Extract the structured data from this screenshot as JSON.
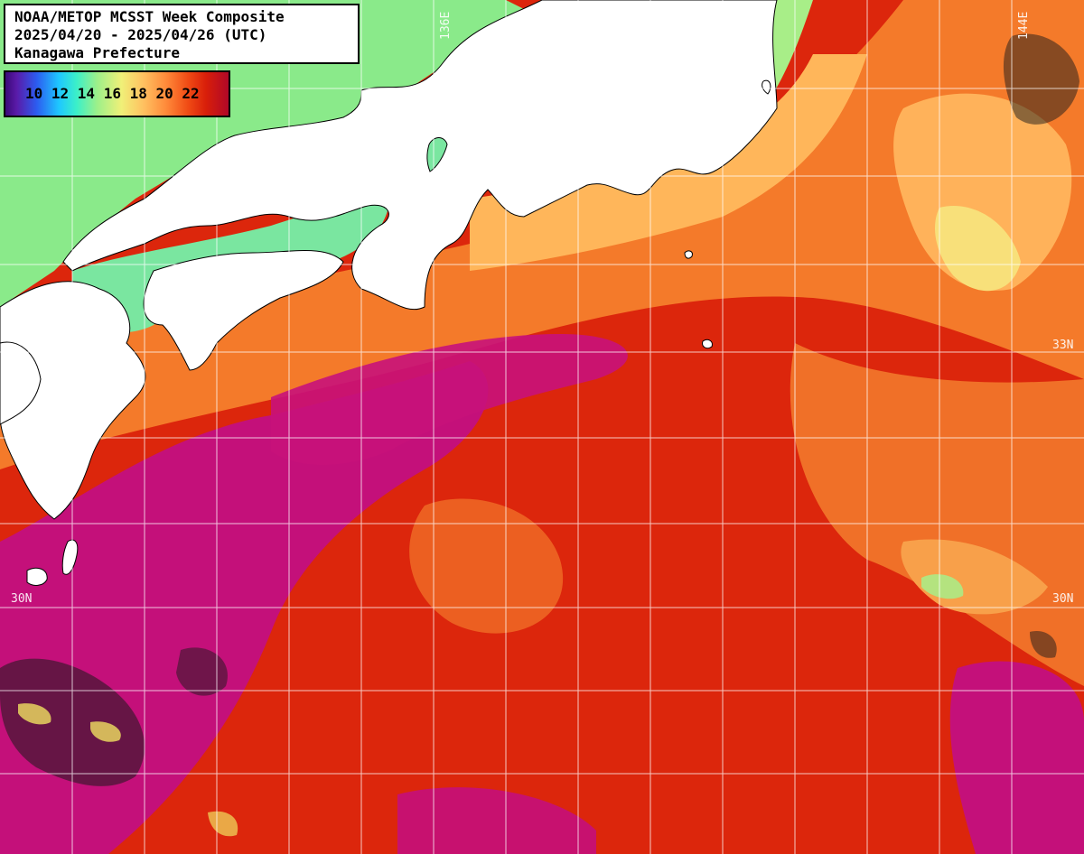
{
  "title": {
    "line1": "NOAA/METOP MCSST Week Composite",
    "line2": "2025/04/20 - 2025/04/26 (UTC)",
    "line3": "Kanagawa Prefecture"
  },
  "legend": {
    "labels": "10 12 14 16 18 20 22",
    "min": 10,
    "max": 22,
    "colors": [
      "#3a0a78",
      "#2c5cf0",
      "#1ec8ff",
      "#9cf08a",
      "#f0f078",
      "#ff8a3a",
      "#d81e0a",
      "#b00828"
    ]
  },
  "grid_labels": {
    "lon_136": "136E",
    "lon_144": "144E",
    "lat_33_right": "33N",
    "lat_30_left": "30N",
    "lat_30_right": "30N"
  },
  "colors": {
    "land": "#ffffff",
    "coastline": "#000000",
    "gridline": "#ffffff",
    "sst_warm": "#d81e0a",
    "sst_warmest": "#c0107a",
    "sst_mid": "#ff8a3a",
    "sst_cool": "#9cf08a"
  }
}
